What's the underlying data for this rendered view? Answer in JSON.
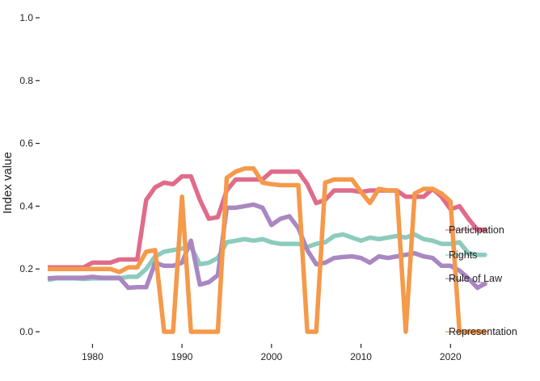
{
  "chart_data": {
    "type": "line",
    "title": "",
    "xlabel": "",
    "ylabel": "Index value",
    "xlim": [
      1974,
      2030
    ],
    "ylim": [
      0,
      1.0
    ],
    "x_ticks": [
      1980,
      1990,
      2000,
      2010,
      2020
    ],
    "y_ticks": [
      0.0,
      0.2,
      0.4,
      0.6,
      0.8,
      1.0
    ],
    "y_tick_labels": [
      "0.0",
      "0.2",
      "0.4",
      "0.6",
      "0.8",
      "1.0"
    ],
    "grid": false,
    "legend": "direct labels at right end of each line",
    "x": [
      1975,
      1976,
      1977,
      1978,
      1979,
      1980,
      1981,
      1982,
      1983,
      1984,
      1985,
      1986,
      1987,
      1988,
      1989,
      1990,
      1991,
      1992,
      1993,
      1994,
      1995,
      1996,
      1997,
      1998,
      1999,
      2000,
      2001,
      2002,
      2003,
      2004,
      2005,
      2006,
      2007,
      2008,
      2009,
      2010,
      2011,
      2012,
      2013,
      2014,
      2015,
      2016,
      2017,
      2018,
      2019,
      2020,
      2021,
      2022,
      2023,
      2024
    ],
    "series": [
      {
        "name": "Participation",
        "color": "#e06c8a",
        "values": [
          0.205,
          0.205,
          0.205,
          0.205,
          0.205,
          0.22,
          0.22,
          0.22,
          0.23,
          0.23,
          0.23,
          0.42,
          0.46,
          0.475,
          0.47,
          0.495,
          0.495,
          0.42,
          0.36,
          0.365,
          0.45,
          0.485,
          0.485,
          0.485,
          0.485,
          0.51,
          0.51,
          0.51,
          0.51,
          0.47,
          0.41,
          0.42,
          0.45,
          0.45,
          0.45,
          0.445,
          0.45,
          0.45,
          0.45,
          0.45,
          0.43,
          0.43,
          0.43,
          0.455,
          0.43,
          0.39,
          0.4,
          0.36,
          0.325,
          0.325
        ]
      },
      {
        "name": "Rights",
        "color": "#8ccbbe",
        "values": [
          0.165,
          0.17,
          0.17,
          0.17,
          0.168,
          0.17,
          0.17,
          0.17,
          0.17,
          0.175,
          0.175,
          0.2,
          0.24,
          0.255,
          0.26,
          0.265,
          0.27,
          0.215,
          0.22,
          0.235,
          0.285,
          0.29,
          0.295,
          0.29,
          0.295,
          0.285,
          0.28,
          0.28,
          0.28,
          0.27,
          0.28,
          0.285,
          0.305,
          0.31,
          0.3,
          0.29,
          0.3,
          0.295,
          0.3,
          0.305,
          0.3,
          0.31,
          0.295,
          0.29,
          0.28,
          0.28,
          0.285,
          0.25,
          0.245,
          0.245
        ]
      },
      {
        "name": "Rule of Law",
        "color": "#a987c2",
        "values": [
          0.17,
          0.172,
          0.172,
          0.172,
          0.172,
          0.175,
          0.172,
          0.172,
          0.172,
          0.14,
          0.142,
          0.142,
          0.22,
          0.21,
          0.21,
          0.22,
          0.29,
          0.15,
          0.158,
          0.18,
          0.395,
          0.395,
          0.4,
          0.405,
          0.395,
          0.34,
          0.36,
          0.368,
          0.33,
          0.26,
          0.215,
          0.22,
          0.235,
          0.238,
          0.24,
          0.235,
          0.22,
          0.24,
          0.235,
          0.24,
          0.245,
          0.25,
          0.24,
          0.235,
          0.21,
          0.21,
          0.195,
          0.17,
          0.14,
          0.155
        ]
      },
      {
        "name": "Representation",
        "color": "#f5994a",
        "values": [
          0.2,
          0.2,
          0.2,
          0.2,
          0.2,
          0.2,
          0.2,
          0.2,
          0.19,
          0.205,
          0.205,
          0.255,
          0.26,
          0.0,
          0.0,
          0.43,
          0.0,
          0.0,
          0.0,
          0.0,
          0.49,
          0.51,
          0.52,
          0.52,
          0.475,
          0.47,
          0.467,
          0.467,
          0.467,
          0.0,
          0.0,
          0.475,
          0.485,
          0.485,
          0.485,
          0.445,
          0.41,
          0.455,
          0.45,
          0.45,
          0.0,
          0.44,
          0.455,
          0.455,
          0.44,
          0.415,
          0.0,
          0.0,
          0.0,
          0.0
        ]
      }
    ]
  }
}
